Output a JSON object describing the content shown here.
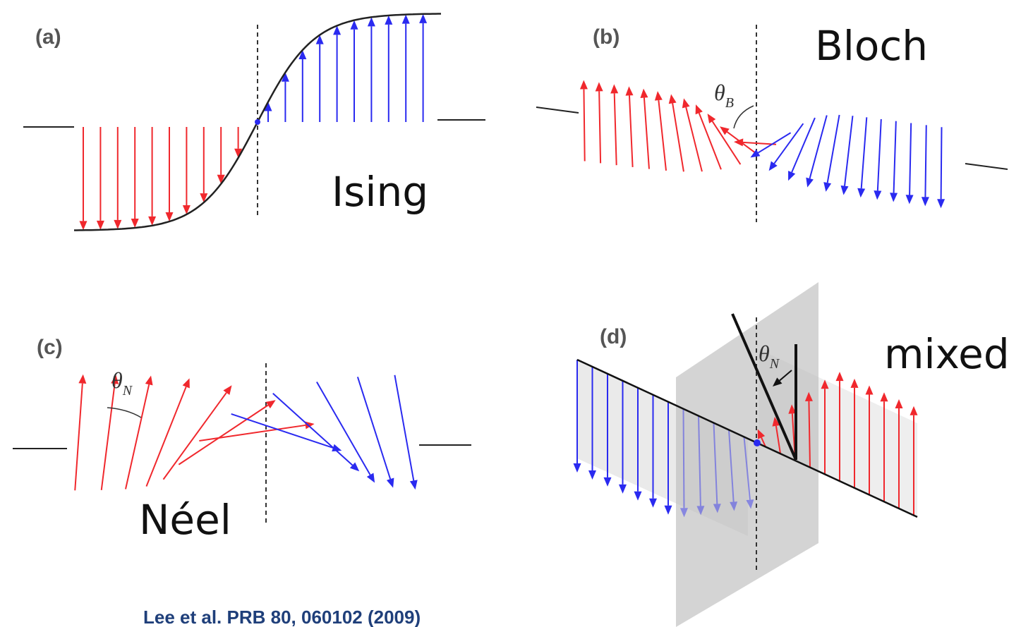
{
  "panels": [
    {
      "tag": "(a)",
      "label": "Ising"
    },
    {
      "tag": "(b)",
      "label": "Bloch",
      "angle": {
        "symbol": "θ",
        "subscript": "B"
      }
    },
    {
      "tag": "(c)",
      "label": "Néel",
      "angle": {
        "symbol": "θ",
        "subscript": "N"
      }
    },
    {
      "tag": "(d)",
      "label": "mixed",
      "angle": {
        "symbol": "θ",
        "subscript": "N"
      }
    }
  ],
  "citation": "Lee et al. PRB 80, 060102 (2009)"
}
